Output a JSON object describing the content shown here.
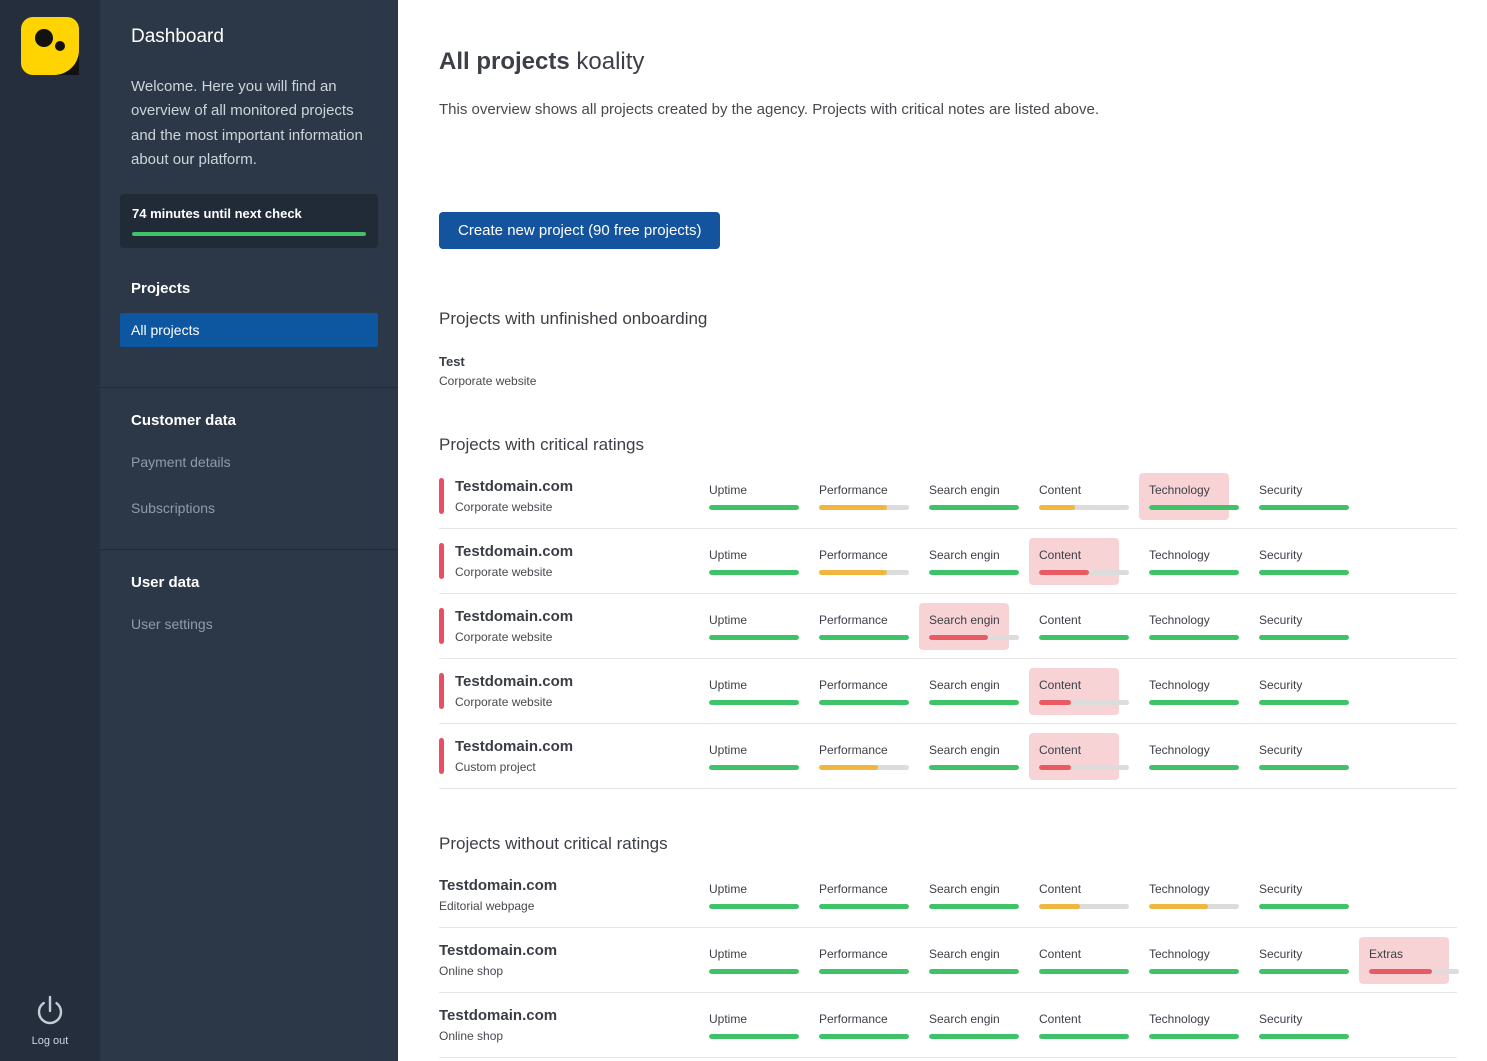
{
  "colors": {
    "green": "#3fc368",
    "yellow": "#f0b63e",
    "red": "#e95a63",
    "track": "#dcdcdc",
    "highlight_bg": "#f7d3d6",
    "critical_bar": "#e84f62",
    "accent_blue": "#14549e",
    "logo_yellow": "#ffd400"
  },
  "rail": {
    "logout_label": "Log out"
  },
  "sidebar": {
    "title": "Dashboard",
    "welcome": "Welcome. Here you will find an overview of all monitored projects and the most important information about our platform.",
    "check_notice": "74 minutes until next check",
    "check_progress_percent": 100,
    "sections": [
      {
        "heading": "Projects",
        "items": [
          {
            "label": "All projects",
            "active": true
          }
        ]
      },
      {
        "heading": "Customer data",
        "items": [
          {
            "label": "Payment details",
            "active": false
          },
          {
            "label": "Subscriptions",
            "active": false
          }
        ]
      },
      {
        "heading": "User data",
        "items": [
          {
            "label": "User settings",
            "active": false
          }
        ]
      }
    ]
  },
  "main": {
    "title_bold": "All projects",
    "title_light": "koality",
    "subtitle": "This overview shows all projects created by the agency. Projects with critical notes are listed above.",
    "create_button_label": "Create new project (90 free projects)",
    "onboarding": {
      "heading": "Projects with unfinished onboarding",
      "projects": [
        {
          "name": "Test",
          "type": "Corporate website"
        }
      ]
    },
    "critical": {
      "heading": "Projects with critical ratings",
      "projects": [
        {
          "name": "Testdomain.com",
          "type": "Corporate website",
          "critical": true,
          "metrics": [
            {
              "label": "Uptime",
              "value": 100,
              "color": "green",
              "highlighted": false
            },
            {
              "label": "Performance",
              "value": 75,
              "color": "yellow",
              "highlighted": false
            },
            {
              "label": "Search engine …",
              "value": 100,
              "color": "green",
              "highlighted": false
            },
            {
              "label": "Content",
              "value": 40,
              "color": "yellow",
              "highlighted": false
            },
            {
              "label": "Technology",
              "value": 100,
              "color": "green",
              "highlighted": true
            },
            {
              "label": "Security",
              "value": 100,
              "color": "green",
              "highlighted": false
            }
          ]
        },
        {
          "name": "Testdomain.com",
          "type": "Corporate website",
          "critical": true,
          "metrics": [
            {
              "label": "Uptime",
              "value": 100,
              "color": "green",
              "highlighted": false
            },
            {
              "label": "Performance",
              "value": 75,
              "color": "yellow",
              "highlighted": false
            },
            {
              "label": "Search engine …",
              "value": 100,
              "color": "green",
              "highlighted": false
            },
            {
              "label": "Content",
              "value": 55,
              "color": "red",
              "highlighted": true
            },
            {
              "label": "Technology",
              "value": 100,
              "color": "green",
              "highlighted": false
            },
            {
              "label": "Security",
              "value": 100,
              "color": "green",
              "highlighted": false
            }
          ]
        },
        {
          "name": "Testdomain.com",
          "type": "Corporate website",
          "critical": true,
          "metrics": [
            {
              "label": "Uptime",
              "value": 100,
              "color": "green",
              "highlighted": false
            },
            {
              "label": "Performance",
              "value": 100,
              "color": "green",
              "highlighted": false
            },
            {
              "label": "Search engine …",
              "value": 65,
              "color": "red",
              "highlighted": true
            },
            {
              "label": "Content",
              "value": 100,
              "color": "green",
              "highlighted": false
            },
            {
              "label": "Technology",
              "value": 100,
              "color": "green",
              "highlighted": false
            },
            {
              "label": "Security",
              "value": 100,
              "color": "green",
              "highlighted": false
            }
          ]
        },
        {
          "name": "Testdomain.com",
          "type": "Corporate website",
          "critical": true,
          "metrics": [
            {
              "label": "Uptime",
              "value": 100,
              "color": "green",
              "highlighted": false
            },
            {
              "label": "Performance",
              "value": 100,
              "color": "green",
              "highlighted": false
            },
            {
              "label": "Search engine …",
              "value": 100,
              "color": "green",
              "highlighted": false
            },
            {
              "label": "Content",
              "value": 35,
              "color": "red",
              "highlighted": true
            },
            {
              "label": "Technology",
              "value": 100,
              "color": "green",
              "highlighted": false
            },
            {
              "label": "Security",
              "value": 100,
              "color": "green",
              "highlighted": false
            }
          ]
        },
        {
          "name": "Testdomain.com",
          "type": "Custom project",
          "critical": true,
          "metrics": [
            {
              "label": "Uptime",
              "value": 100,
              "color": "green",
              "highlighted": false
            },
            {
              "label": "Performance",
              "value": 65,
              "color": "yellow",
              "highlighted": false
            },
            {
              "label": "Search engine …",
              "value": 100,
              "color": "green",
              "highlighted": false
            },
            {
              "label": "Content",
              "value": 35,
              "color": "red",
              "highlighted": true
            },
            {
              "label": "Technology",
              "value": 100,
              "color": "green",
              "highlighted": false
            },
            {
              "label": "Security",
              "value": 100,
              "color": "green",
              "highlighted": false
            }
          ]
        }
      ]
    },
    "ok": {
      "heading": "Projects without critical ratings",
      "projects": [
        {
          "name": "Testdomain.com",
          "type": "Editorial webpage",
          "critical": false,
          "metrics": [
            {
              "label": "Uptime",
              "value": 100,
              "color": "green",
              "highlighted": false
            },
            {
              "label": "Performance",
              "value": 100,
              "color": "green",
              "highlighted": false
            },
            {
              "label": "Search engine …",
              "value": 100,
              "color": "green",
              "highlighted": false
            },
            {
              "label": "Content",
              "value": 45,
              "color": "yellow",
              "highlighted": false
            },
            {
              "label": "Technology",
              "value": 65,
              "color": "yellow",
              "highlighted": false
            },
            {
              "label": "Security",
              "value": 100,
              "color": "green",
              "highlighted": false
            }
          ]
        },
        {
          "name": "Testdomain.com",
          "type": "Online shop",
          "critical": false,
          "metrics": [
            {
              "label": "Uptime",
              "value": 100,
              "color": "green",
              "highlighted": false
            },
            {
              "label": "Performance",
              "value": 100,
              "color": "green",
              "highlighted": false
            },
            {
              "label": "Search engine …",
              "value": 100,
              "color": "green",
              "highlighted": false
            },
            {
              "label": "Content",
              "value": 100,
              "color": "green",
              "highlighted": false
            },
            {
              "label": "Technology",
              "value": 100,
              "color": "green",
              "highlighted": false
            },
            {
              "label": "Security",
              "value": 100,
              "color": "green",
              "highlighted": false
            },
            {
              "label": "Extras",
              "value": 70,
              "color": "red",
              "highlighted": true
            }
          ]
        },
        {
          "name": "Testdomain.com",
          "type": "Online shop",
          "critical": false,
          "metrics": [
            {
              "label": "Uptime",
              "value": 100,
              "color": "green",
              "highlighted": false
            },
            {
              "label": "Performance",
              "value": 100,
              "color": "green",
              "highlighted": false
            },
            {
              "label": "Search engine …",
              "value": 100,
              "color": "green",
              "highlighted": false
            },
            {
              "label": "Content",
              "value": 100,
              "color": "green",
              "highlighted": false
            },
            {
              "label": "Technology",
              "value": 100,
              "color": "green",
              "highlighted": false
            },
            {
              "label": "Security",
              "value": 100,
              "color": "green",
              "highlighted": false
            }
          ]
        }
      ]
    }
  }
}
